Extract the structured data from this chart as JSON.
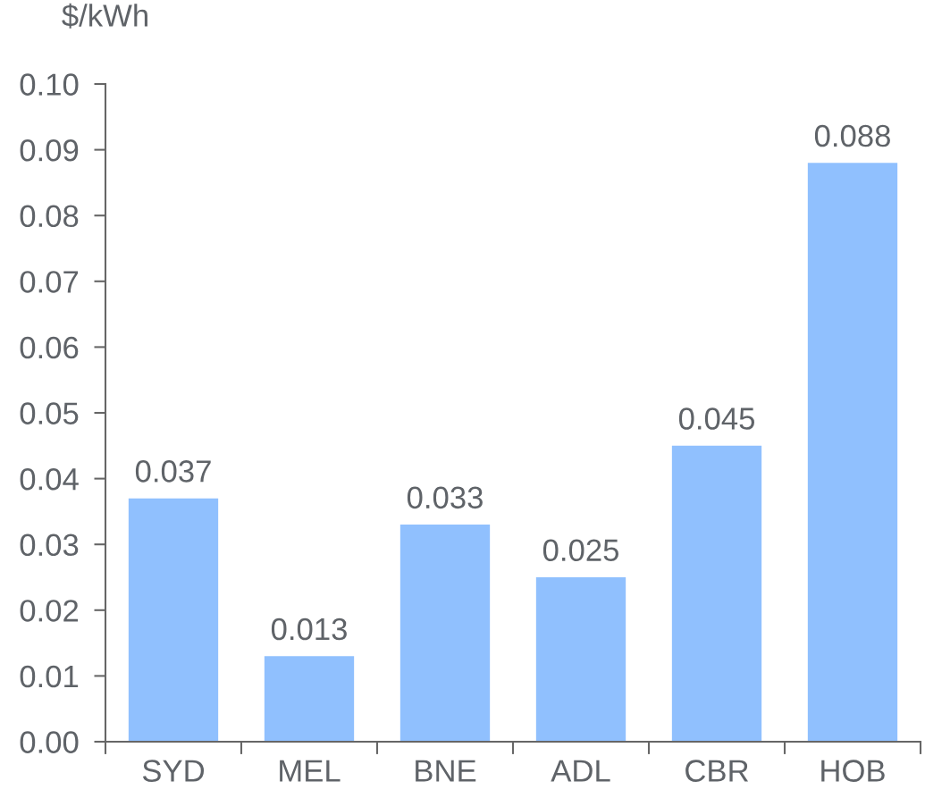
{
  "chart_data": {
    "type": "bar",
    "ylabel": "$/kWh",
    "categories": [
      "SYD",
      "MEL",
      "BNE",
      "ADL",
      "CBR",
      "HOB"
    ],
    "values": [
      0.037,
      0.013,
      0.033,
      0.025,
      0.045,
      0.088
    ],
    "color": "#90c0fe",
    "ylim": [
      0,
      0.1
    ],
    "yticks": [
      {
        "value": 0,
        "label": "0.00"
      },
      {
        "value": 0.01,
        "label": "0.01"
      },
      {
        "value": 0.02,
        "label": "0.02"
      },
      {
        "value": 0.03,
        "label": "0.03"
      },
      {
        "value": 0.04,
        "label": "0.04"
      },
      {
        "value": 0.05,
        "label": "0.05"
      },
      {
        "value": 0.06,
        "label": "0.06"
      },
      {
        "value": 0.07,
        "label": "0.07"
      },
      {
        "value": 0.08,
        "label": "0.08"
      },
      {
        "value": 0.09,
        "label": "0.09"
      },
      {
        "value": 0.1,
        "label": "0.10"
      }
    ],
    "data_labels": true,
    "grid": false,
    "legend": false
  }
}
